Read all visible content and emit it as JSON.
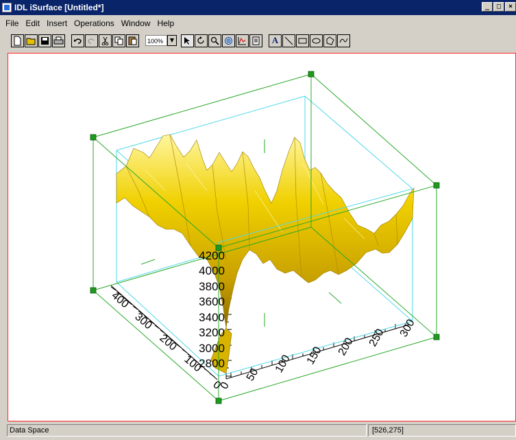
{
  "window": {
    "title": "IDL iSurface [Untitled*]",
    "minimize": "_",
    "restore": "□",
    "close": "×"
  },
  "menu": [
    "File",
    "Edit",
    "Insert",
    "Operations",
    "Window",
    "Help"
  ],
  "toolbar": {
    "zoom": "100%"
  },
  "plot": {
    "z_ticks": [
      "4200",
      "4000",
      "3800",
      "3600",
      "3400",
      "3200",
      "3000",
      "2800"
    ],
    "x_ticks": [
      "0",
      "50",
      "100",
      "150",
      "200",
      "250",
      "300"
    ],
    "y_ticks": [
      "400",
      "300",
      "200",
      "100",
      "0"
    ],
    "surface_color": "#e6c400",
    "box_color": "#2aa82a",
    "inner_box_color": "#4fd8e8"
  },
  "status": {
    "left": "Data Space",
    "right": "[526,275]"
  }
}
